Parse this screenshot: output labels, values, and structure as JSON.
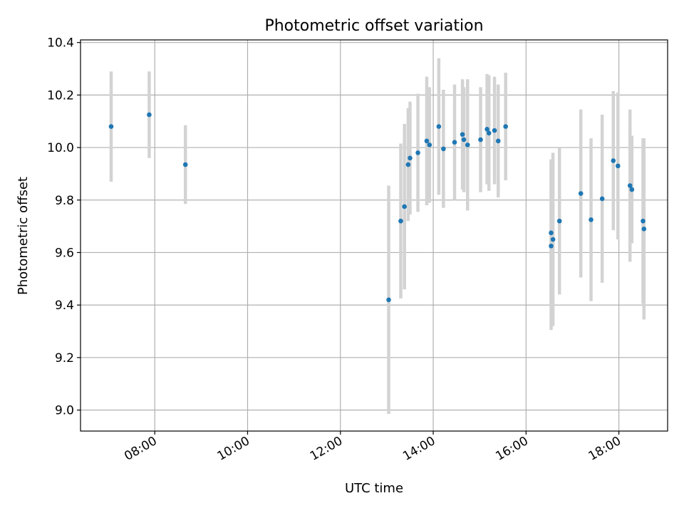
{
  "chart_data": {
    "type": "scatter",
    "title": "Photometric offset variation",
    "xlabel": "UTC time",
    "ylabel": "Photometric offset",
    "x_unit": "hours UTC",
    "xlim": [
      6.4,
      19.05
    ],
    "ylim": [
      8.92,
      10.41
    ],
    "grid": true,
    "x_ticks": [
      {
        "value": 8,
        "label": "08:00"
      },
      {
        "value": 10,
        "label": "10:00"
      },
      {
        "value": 12,
        "label": "12:00"
      },
      {
        "value": 14,
        "label": "14:00"
      },
      {
        "value": 16,
        "label": "16:00"
      },
      {
        "value": 18,
        "label": "18:00"
      }
    ],
    "y_ticks": [
      {
        "value": 9.0,
        "label": "9.0"
      },
      {
        "value": 9.2,
        "label": "9.2"
      },
      {
        "value": 9.4,
        "label": "9.4"
      },
      {
        "value": 9.6,
        "label": "9.6"
      },
      {
        "value": 9.8,
        "label": "9.8"
      },
      {
        "value": 10.0,
        "label": "10.0"
      },
      {
        "value": 10.2,
        "label": "10.2"
      },
      {
        "value": 10.4,
        "label": "10.4"
      }
    ],
    "marker_color": "#1f77b4",
    "errorbar_color": "#d3d3d3",
    "points": [
      {
        "x": 7.06,
        "y": 10.08,
        "yerr": 0.21
      },
      {
        "x": 7.88,
        "y": 10.125,
        "yerr": 0.165
      },
      {
        "x": 8.66,
        "y": 9.935,
        "yerr": 0.15
      },
      {
        "x": 13.04,
        "y": 9.42,
        "yerr": 0.435
      },
      {
        "x": 13.3,
        "y": 9.72,
        "yerr": 0.295
      },
      {
        "x": 13.38,
        "y": 9.775,
        "yerr": 0.315
      },
      {
        "x": 13.46,
        "y": 9.935,
        "yerr": 0.215
      },
      {
        "x": 13.5,
        "y": 9.96,
        "yerr": 0.215
      },
      {
        "x": 13.67,
        "y": 9.98,
        "yerr": 0.225
      },
      {
        "x": 13.86,
        "y": 10.025,
        "yerr": 0.245
      },
      {
        "x": 13.92,
        "y": 10.01,
        "yerr": 0.22
      },
      {
        "x": 14.12,
        "y": 10.08,
        "yerr": 0.26
      },
      {
        "x": 14.22,
        "y": 9.995,
        "yerr": 0.225
      },
      {
        "x": 14.46,
        "y": 10.02,
        "yerr": 0.22
      },
      {
        "x": 14.63,
        "y": 10.05,
        "yerr": 0.21
      },
      {
        "x": 14.66,
        "y": 10.03,
        "yerr": 0.2
      },
      {
        "x": 14.74,
        "y": 10.01,
        "yerr": 0.25
      },
      {
        "x": 15.02,
        "y": 10.03,
        "yerr": 0.2
      },
      {
        "x": 15.16,
        "y": 10.07,
        "yerr": 0.21
      },
      {
        "x": 15.2,
        "y": 10.055,
        "yerr": 0.22
      },
      {
        "x": 15.32,
        "y": 10.065,
        "yerr": 0.205
      },
      {
        "x": 15.4,
        "y": 10.025,
        "yerr": 0.215
      },
      {
        "x": 15.56,
        "y": 10.08,
        "yerr": 0.205
      },
      {
        "x": 16.54,
        "y": 9.675,
        "yerr": 0.28
      },
      {
        "x": 16.54,
        "y": 9.625,
        "yerr": 0.32
      },
      {
        "x": 16.58,
        "y": 9.65,
        "yerr": 0.33
      },
      {
        "x": 16.72,
        "y": 9.72,
        "yerr": 0.28
      },
      {
        "x": 17.18,
        "y": 9.825,
        "yerr": 0.32
      },
      {
        "x": 17.4,
        "y": 9.725,
        "yerr": 0.31
      },
      {
        "x": 17.64,
        "y": 9.805,
        "yerr": 0.32
      },
      {
        "x": 17.88,
        "y": 9.95,
        "yerr": 0.265
      },
      {
        "x": 17.98,
        "y": 9.93,
        "yerr": 0.28
      },
      {
        "x": 18.24,
        "y": 9.855,
        "yerr": 0.29
      },
      {
        "x": 18.28,
        "y": 9.84,
        "yerr": 0.205
      },
      {
        "x": 18.52,
        "y": 9.72,
        "yerr": 0.315
      },
      {
        "x": 18.54,
        "y": 9.69,
        "yerr": 0.345
      }
    ]
  }
}
